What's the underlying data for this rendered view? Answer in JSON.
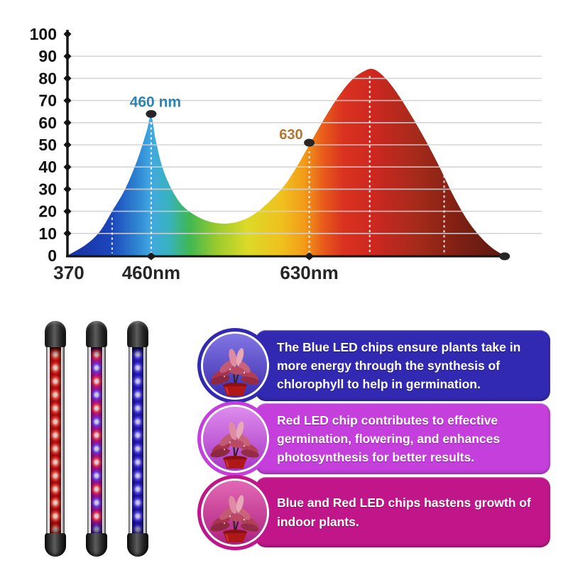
{
  "chart_data": {
    "type": "area",
    "title": "",
    "xlabel": "",
    "ylabel": "",
    "ylim": [
      0,
      100
    ],
    "xlim_nm": [
      370,
      840
    ],
    "grid": true,
    "legend": "none",
    "y_ticks": [
      0,
      10,
      20,
      30,
      40,
      50,
      60,
      70,
      80,
      90,
      100
    ],
    "x_origin_label": "370",
    "x_tick_labels": [
      {
        "label": "460nm",
        "nm": 460
      },
      {
        "label": "630nm",
        "nm": 630
      }
    ],
    "series": [
      {
        "name": "LED emission spectrum",
        "points_nm_intensity": [
          [
            370,
            0
          ],
          [
            390,
            5
          ],
          [
            405,
            11
          ],
          [
            418,
            20
          ],
          [
            432,
            30
          ],
          [
            445,
            43
          ],
          [
            455,
            56
          ],
          [
            460,
            63
          ],
          [
            465,
            52
          ],
          [
            472,
            40
          ],
          [
            482,
            30
          ],
          [
            495,
            22
          ],
          [
            515,
            16.5
          ],
          [
            535,
            14.5
          ],
          [
            555,
            15.5
          ],
          [
            575,
            20
          ],
          [
            600,
            30
          ],
          [
            615,
            39
          ],
          [
            630,
            50
          ],
          [
            645,
            61
          ],
          [
            660,
            71
          ],
          [
            675,
            79
          ],
          [
            690,
            83.5
          ],
          [
            700,
            84
          ],
          [
            712,
            80
          ],
          [
            725,
            73
          ],
          [
            740,
            63
          ],
          [
            755,
            52
          ],
          [
            770,
            40
          ],
          [
            785,
            27
          ],
          [
            800,
            16
          ],
          [
            815,
            8
          ],
          [
            828,
            3
          ],
          [
            840,
            0
          ]
        ]
      }
    ],
    "peak_annotations": [
      {
        "text": "460 nm",
        "nm": 460,
        "value": 63,
        "color": "#2e82b4"
      },
      {
        "text": "630",
        "nm": 630,
        "value": 50,
        "color": "#b5742f"
      }
    ],
    "marker_dots": [
      {
        "nm": 460,
        "value": 63
      },
      {
        "nm": 630,
        "value": 50
      },
      {
        "nm": 840,
        "value": 0
      }
    ],
    "baseline_marker_nm": [
      460,
      630
    ],
    "dotted_guides": [
      {
        "nm": 418,
        "value": 20
      },
      {
        "nm": 460,
        "value": 63
      },
      {
        "nm": 630,
        "value": 50
      },
      {
        "nm": 695,
        "value": 84
      },
      {
        "nm": 775,
        "value": 39
      }
    ]
  },
  "tubes": [
    {
      "name": "red-led-tube",
      "leds": "red"
    },
    {
      "name": "red-and-blue-led-tube",
      "leds": "red-blue"
    },
    {
      "name": "blue-led-tube",
      "leds": "blue"
    }
  ],
  "callouts": [
    {
      "text": "The Blue LED chips ensure plants take in more energy through the synthesis of chlorophyll to help in germination.",
      "bg_color": "#3229b2",
      "circle_bg_top": "#8276e4",
      "circle_bg_bottom": "#3b2dae",
      "image": "plant-under-blue-grow-light"
    },
    {
      "text": "Red LED chip contributes to effective germination, flowering, and enhances photosynthesis for better results.",
      "bg_color": "#c43fdb",
      "circle_bg_top": "#de8cee",
      "circle_bg_bottom": "#a836c4",
      "image": "plant-under-red-grow-light"
    },
    {
      "text": "Blue and Red LED chips hastens growth of indoor plants.",
      "bg_color": "#c01689",
      "circle_bg_top": "#e368b4",
      "circle_bg_bottom": "#ad2380",
      "image": "plant-under-red-blue-grow-light"
    }
  ]
}
